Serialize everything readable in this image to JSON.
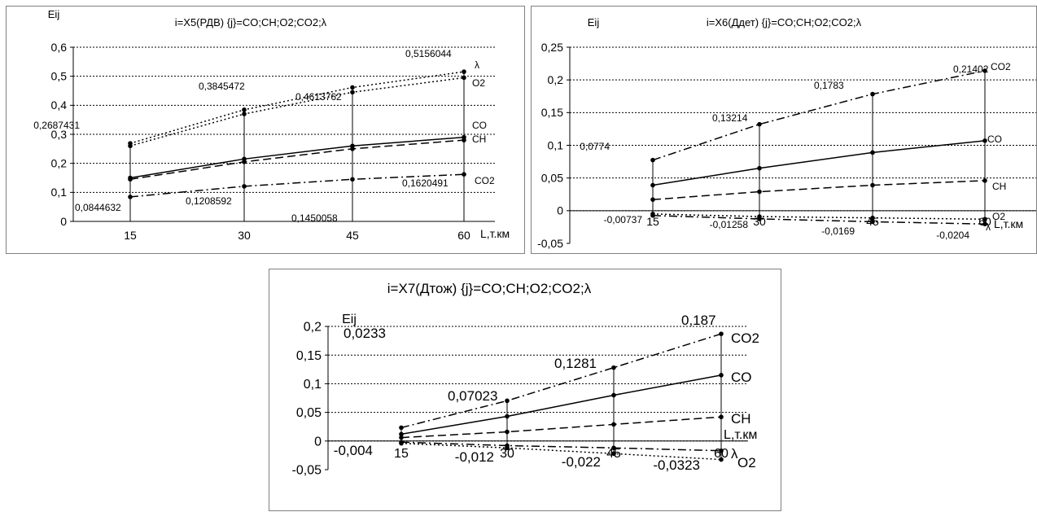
{
  "chart_data": [
    {
      "type": "line",
      "title": "i=X5(РДВ) {j}=CO;CH;O2;CO2;λ",
      "ylabel": "Eij",
      "xlabel": "L,т.км",
      "x": [
        15,
        30,
        45,
        60
      ],
      "ylim": [
        0,
        0.6
      ],
      "yticks": [
        "0",
        "0,1",
        "0,2",
        "0,3",
        "0,4",
        "0,5",
        "0,6"
      ],
      "grid": true,
      "series": [
        {
          "name": "λ",
          "values": [
            0.2687431,
            0.3845472,
            0.4613762,
            0.5156044
          ],
          "style": "dotted"
        },
        {
          "name": "O2",
          "values": [
            0.26,
            0.37,
            0.445,
            0.495
          ],
          "style": "dotted"
        },
        {
          "name": "CO",
          "values": [
            0.15,
            0.215,
            0.26,
            0.29
          ],
          "style": "solid"
        },
        {
          "name": "CH",
          "values": [
            0.145,
            0.205,
            0.25,
            0.28
          ],
          "style": "dashed"
        },
        {
          "name": "CO2",
          "values": [
            0.0844632,
            0.1208592,
            0.1450058,
            0.1620491
          ],
          "style": "dashdot"
        }
      ],
      "data_labels": [
        "0,2687431",
        "0,3845472",
        "0,4613762",
        "0,5156044",
        "0,0844632",
        "0,1208592",
        "0,1450058",
        "0,1620491"
      ]
    },
    {
      "type": "line",
      "title": "i=X6(Ддет) {j}=CO;CH;O2;CO2;λ",
      "ylabel": "Eij",
      "xlabel": "L,т.км",
      "x": [
        15,
        30,
        45,
        60
      ],
      "ylim": [
        -0.05,
        0.25
      ],
      "yticks": [
        "-0,05",
        "0",
        "0,05",
        "0,1",
        "0,15",
        "0,2",
        "0,25"
      ],
      "grid": true,
      "series": [
        {
          "name": "CO2",
          "values": [
            0.0774,
            0.13214,
            0.1783,
            0.21402
          ],
          "style": "dashdot"
        },
        {
          "name": "CO",
          "values": [
            0.039,
            0.065,
            0.089,
            0.107
          ],
          "style": "solid"
        },
        {
          "name": "CH",
          "values": [
            0.017,
            0.029,
            0.039,
            0.046
          ],
          "style": "dashed"
        },
        {
          "name": "O2",
          "values": [
            -0.005,
            -0.009,
            -0.011,
            -0.013
          ],
          "style": "dotted"
        },
        {
          "name": "λ",
          "values": [
            -0.00737,
            -0.01258,
            -0.0169,
            -0.0204
          ],
          "style": "dashdot"
        }
      ],
      "data_labels": [
        "0,0774",
        "0,13214",
        "0,1783",
        "0,21402",
        "-0,00737",
        "-0,01258",
        "-0,0169",
        "-0,0204"
      ]
    },
    {
      "type": "line",
      "title": "i=X7(Дтож) {j}=CO;CH;O2;CO2;λ",
      "ylabel": "Eij",
      "xlabel": "L,т.км",
      "x": [
        15,
        30,
        45,
        60
      ],
      "ylim": [
        -0.05,
        0.2
      ],
      "yticks": [
        "-0,05",
        "0",
        "0,05",
        "0,1",
        "0,15",
        "0,2"
      ],
      "grid": true,
      "series": [
        {
          "name": "CO2",
          "values": [
            0.0233,
            0.07023,
            0.1281,
            0.187
          ],
          "style": "dashdot"
        },
        {
          "name": "CO",
          "values": [
            0.012,
            0.043,
            0.08,
            0.115
          ],
          "style": "solid"
        },
        {
          "name": "CH",
          "values": [
            0.006,
            0.016,
            0.029,
            0.042
          ],
          "style": "dashed"
        },
        {
          "name": "λ",
          "values": [
            -0.002,
            -0.008,
            -0.012,
            -0.017
          ],
          "style": "dashdot"
        },
        {
          "name": "O2",
          "values": [
            -0.004,
            -0.012,
            -0.022,
            -0.0323
          ],
          "style": "dotted"
        }
      ],
      "data_labels": [
        "0,0233",
        "0,07023",
        "0,1281",
        "0,187",
        "-0,004",
        "-0,012",
        "-0,022",
        "-0,0323"
      ]
    }
  ]
}
